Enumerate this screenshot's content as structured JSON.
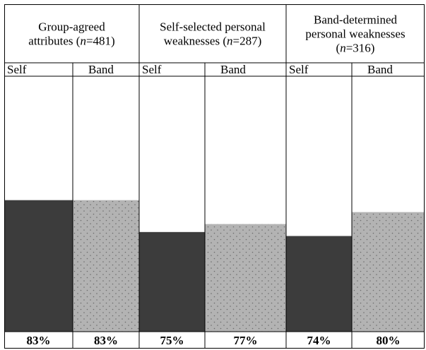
{
  "chart_data": {
    "type": "bar",
    "groups": [
      {
        "title_parts": [
          [
            "Group-agreed",
            ""
          ],
          [
            "attributes (",
            "n",
            "=481)"
          ]
        ],
        "n": 481
      },
      {
        "title_parts": [
          [
            "Self-selected personal",
            ""
          ],
          [
            "weaknesses (",
            "n",
            "=287)"
          ]
        ],
        "n": 287
      },
      {
        "title_parts": [
          [
            "Band-determined",
            ""
          ],
          [
            "personal weaknesses",
            ""
          ],
          [
            "(",
            "n",
            "=316)"
          ]
        ],
        "n": 316
      }
    ],
    "categories": [
      "Self",
      "Band",
      "Self",
      "Band",
      "Self",
      "Band"
    ],
    "values": [
      83,
      83,
      75,
      77,
      74,
      80
    ],
    "value_labels": [
      "83%",
      "83%",
      "75%",
      "77%",
      "74%",
      "80%"
    ],
    "colors": {
      "self": "#3c3c3c",
      "band": "#b3b3b3",
      "band_dot": "#6a6a6a"
    }
  }
}
